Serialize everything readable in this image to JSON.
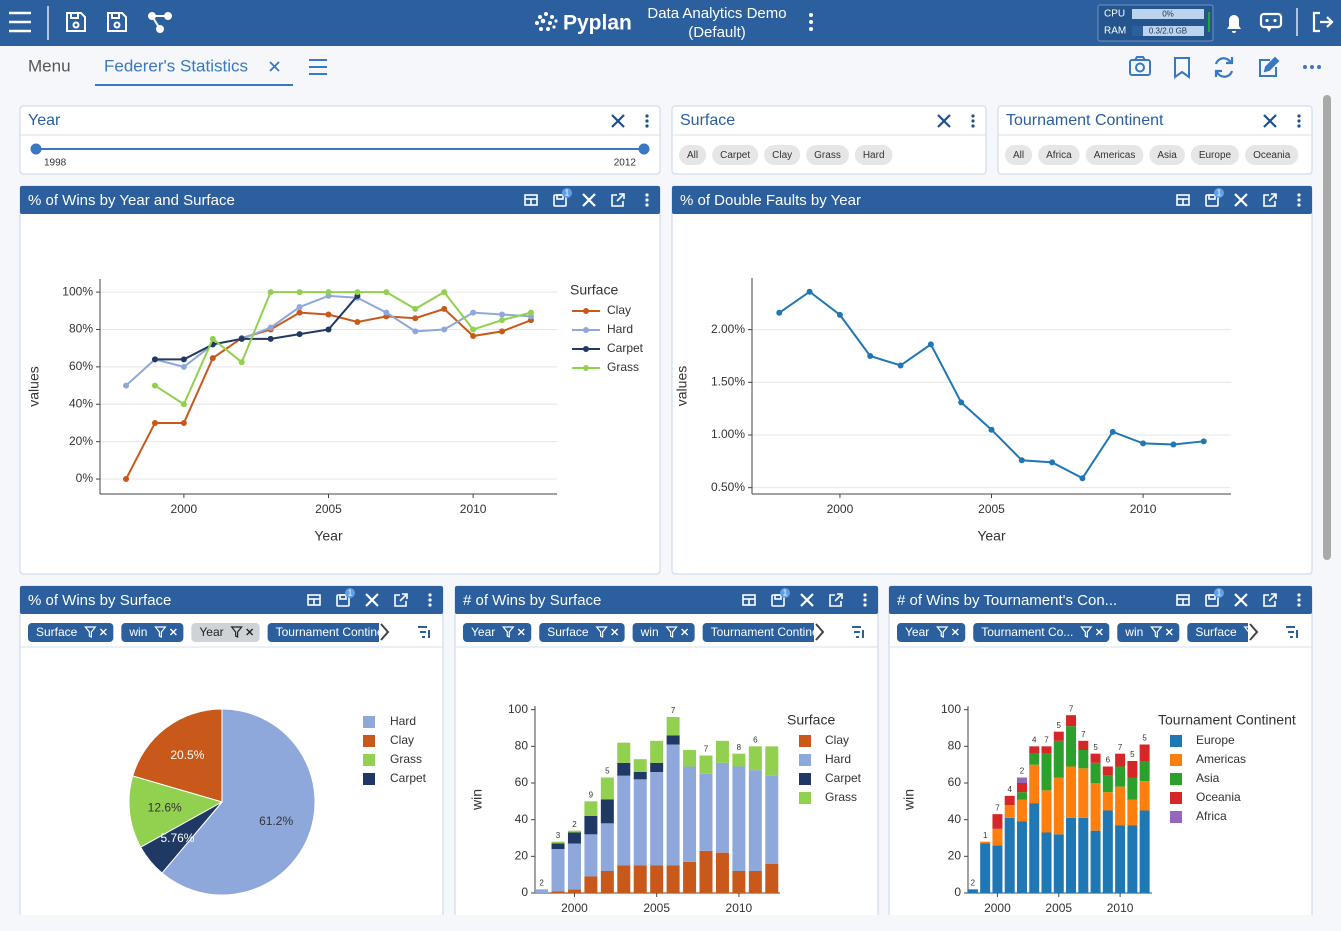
{
  "topbar": {
    "logo": "Pyplan",
    "app_title": "Data Analytics Demo",
    "app_subtitle": "(Default)",
    "cpu_label": "CPU",
    "cpu_value": "0%",
    "ram_label": "RAM",
    "ram_value": "0.3/2.0 GB"
  },
  "tabs": {
    "menu": "Menu",
    "active": "Federer's Statistics"
  },
  "filters": [
    {
      "title": "Year",
      "min_label": "1998",
      "max_label": "2012"
    },
    {
      "title": "Surface",
      "options": [
        "All",
        "Carpet",
        "Clay",
        "Grass",
        "Hard"
      ]
    },
    {
      "title": "Tournament Continent",
      "options": [
        "All",
        "Africa",
        "Americas",
        "Asia",
        "Europe",
        "Oceania"
      ]
    }
  ],
  "chart_data": [
    {
      "type": "line",
      "title": "% of Wins by Year and Surface",
      "badge": "1",
      "x_label": "Year",
      "y_label": "values",
      "legend_title": "Surface",
      "grid": true,
      "x": [
        1998,
        1999,
        2000,
        2001,
        2002,
        2003,
        2004,
        2005,
        2006,
        2007,
        2008,
        2009,
        2010,
        2011,
        2012
      ],
      "xlim": [
        1997.1,
        2012.9
      ],
      "xticks": [
        2000,
        2005,
        2010
      ],
      "ylim": [
        -8,
        107
      ],
      "yticks": [
        {
          "value": 0,
          "label": "0%"
        },
        {
          "value": 20,
          "label": "20%"
        },
        {
          "value": 40,
          "label": "40%"
        },
        {
          "value": 60,
          "label": "60%"
        },
        {
          "value": 80,
          "label": "80%"
        },
        {
          "value": 100,
          "label": "100%"
        }
      ],
      "series": [
        {
          "name": "Clay",
          "color": "#c8591b",
          "values": [
            0,
            30,
            30,
            64.7,
            75.4,
            80,
            89,
            88,
            84,
            87,
            86,
            91,
            76.5,
            79,
            85
          ]
        },
        {
          "name": "Hard",
          "color": "#8fa8dc",
          "values": [
            50,
            64,
            60,
            72,
            75,
            81,
            92,
            98,
            97,
            89,
            79,
            80,
            89,
            88,
            87
          ]
        },
        {
          "name": "Carpet",
          "color": "#1f3864",
          "values": [
            null,
            64,
            64,
            72,
            75,
            75,
            77.5,
            80,
            98,
            null,
            null,
            null,
            null,
            null,
            null
          ]
        },
        {
          "name": "Grass",
          "color": "#92d050",
          "values": [
            null,
            50,
            40,
            75,
            62.5,
            100,
            100,
            100,
            100,
            100,
            91,
            100,
            80,
            85,
            89
          ]
        }
      ]
    },
    {
      "type": "line",
      "title": "% of Double Faults by Year",
      "badge": "1",
      "x_label": "Year",
      "y_label": "values",
      "grid": true,
      "color": "#1f77b4",
      "x": [
        1998,
        1999,
        2000,
        2001,
        2002,
        2003,
        2004,
        2005,
        2006,
        2007,
        2008,
        2009,
        2010,
        2011,
        2012
      ],
      "xlim": [
        1997.1,
        2012.9
      ],
      "xticks": [
        2000,
        2005,
        2010
      ],
      "ylim": [
        0.44,
        2.49
      ],
      "yticks": [
        {
          "value": 0.5,
          "label": "0.50%"
        },
        {
          "value": 1,
          "label": "1.00%"
        },
        {
          "value": 1.5,
          "label": "1.50%"
        },
        {
          "value": 2,
          "label": "2.00%"
        }
      ],
      "values": [
        2.16,
        2.36,
        2.14,
        1.75,
        1.66,
        1.86,
        1.31,
        1.05,
        0.76,
        0.74,
        0.59,
        1.03,
        0.92,
        0.91,
        0.94
      ]
    },
    {
      "type": "pie",
      "title": "% of Wins by Surface",
      "badge": "1",
      "chips": [
        "Surface",
        "win",
        "Year",
        "Tournament Continent"
      ],
      "categories": [
        "Hard",
        "Clay",
        "Grass",
        "Carpet"
      ],
      "values": [
        61.2,
        20.5,
        12.6,
        5.76
      ],
      "value_labels": [
        "61.2%",
        "20.5%",
        "12.6%",
        "5.76%"
      ],
      "colors": [
        "#8fa8dc",
        "#c8591b",
        "#92d050",
        "#1f3864"
      ]
    },
    {
      "type": "bar",
      "stacked": true,
      "title": "# of Wins by Surface",
      "badge": "1",
      "chips": [
        "Year",
        "Surface",
        "win",
        "Tournament Continent"
      ],
      "y_label": "win",
      "legend_title": "Surface",
      "grid": false,
      "x": [
        1998,
        1999,
        2000,
        2001,
        2002,
        2003,
        2004,
        2005,
        2006,
        2007,
        2008,
        2009,
        2010,
        2011,
        2012
      ],
      "xlim": [
        1997.6,
        2012.5
      ],
      "xticks": [
        2000,
        2005,
        2010
      ],
      "ylim": [
        0,
        102
      ],
      "yticks": [
        0,
        20,
        40,
        60,
        80,
        100
      ],
      "series": [
        {
          "name": "Clay",
          "color": "#c8591b",
          "values": [
            0,
            1,
            2,
            9,
            12,
            15,
            15,
            15,
            15,
            17,
            23,
            22,
            12,
            12,
            16
          ]
        },
        {
          "name": "Hard",
          "color": "#8fa8dc",
          "values": [
            2,
            23,
            25,
            23,
            26,
            49,
            47,
            51,
            66,
            52,
            42,
            49,
            57,
            55,
            48
          ]
        },
        {
          "name": "Carpet",
          "color": "#1f3864",
          "values": [
            0,
            3,
            6,
            10,
            13,
            7,
            4,
            5,
            5,
            0,
            0,
            0,
            0,
            0,
            0
          ]
        },
        {
          "name": "Grass",
          "color": "#92d050",
          "values": [
            0,
            1,
            1,
            8,
            12,
            11,
            7,
            12,
            10,
            9,
            10,
            12,
            7,
            13,
            16
          ]
        }
      ],
      "bar_labels": [
        2,
        3,
        2,
        9,
        5,
        null,
        null,
        null,
        7,
        null,
        7,
        null,
        8,
        6,
        null
      ]
    },
    {
      "type": "bar",
      "stacked": true,
      "title": "# of Wins by Tournament's Con...",
      "badge": "1",
      "chips": [
        "Year",
        "Tournament Co...",
        "win",
        "Surface"
      ],
      "y_label": "win",
      "legend_title": "Tournament Continent",
      "grid": false,
      "x": [
        1998,
        1999,
        2000,
        2001,
        2002,
        2003,
        2004,
        2005,
        2006,
        2007,
        2008,
        2009,
        2010,
        2011,
        2012
      ],
      "xlim": [
        1997.6,
        2012.6
      ],
      "xticks": [
        2000,
        2005,
        2010
      ],
      "ylim": [
        0,
        102
      ],
      "yticks": [
        0,
        20,
        40,
        60,
        80,
        100
      ],
      "series": [
        {
          "name": "Europe",
          "color": "#1f77b4",
          "values": [
            2,
            27,
            26,
            41,
            39,
            49,
            33,
            32,
            41,
            41,
            34,
            45,
            37,
            37,
            45
          ]
        },
        {
          "name": "Americas",
          "color": "#ff7f0e",
          "values": [
            0,
            1,
            9,
            7,
            12,
            21,
            23,
            31,
            28,
            27,
            26,
            10,
            21,
            14,
            16
          ]
        },
        {
          "name": "Asia",
          "color": "#2ca02c",
          "values": [
            0,
            0,
            0,
            0,
            4,
            6,
            20,
            20,
            22,
            10,
            11,
            9,
            11,
            12,
            11
          ]
        },
        {
          "name": "Oceania",
          "color": "#d62728",
          "values": [
            0,
            0,
            8,
            5,
            5,
            4,
            4,
            5,
            6,
            5,
            5,
            5,
            7,
            9,
            9
          ]
        },
        {
          "name": "Africa",
          "color": "#9467bd",
          "values": [
            0,
            0,
            0,
            0,
            3,
            0,
            0,
            0,
            0,
            0,
            0,
            0,
            0,
            0,
            0
          ]
        }
      ],
      "bar_labels": [
        2,
        1,
        7,
        4,
        2,
        4,
        7,
        5,
        7,
        7,
        5,
        6,
        7,
        5,
        5
      ]
    }
  ]
}
